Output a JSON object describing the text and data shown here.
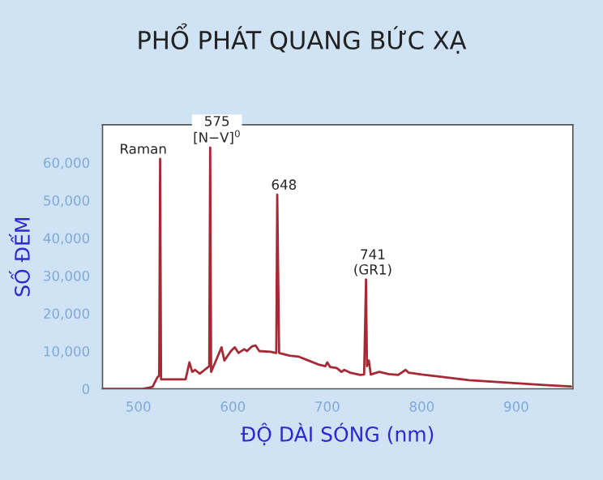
{
  "chart_data": {
    "type": "line",
    "title": "PHỔ PHÁT QUANG BỨC XẠ",
    "xlabel": "ĐỘ DÀI SÓNG (nm)",
    "ylabel": "SỐ ĐẾM",
    "x": [
      462,
      505,
      515,
      520,
      522,
      523,
      524,
      528,
      550,
      554,
      557,
      560,
      565,
      570,
      575,
      576,
      577,
      583,
      588,
      591,
      598,
      602,
      606,
      612,
      615,
      620,
      624,
      628,
      640,
      646,
      647,
      649,
      660,
      670,
      680,
      690,
      698,
      700,
      703,
      710,
      715,
      718,
      725,
      735,
      739,
      741,
      742,
      744,
      746,
      755,
      765,
      775,
      783,
      786,
      800,
      820,
      850,
      880,
      900,
      930,
      958
    ],
    "series": [
      {
        "color": "#a52a35",
        "values": [
          0,
          0,
          500,
          3000,
          3500,
          61000,
          2500,
          2500,
          2500,
          7000,
          4500,
          5000,
          4000,
          5000,
          6000,
          64000,
          4500,
          8000,
          11000,
          7500,
          10000,
          11000,
          9500,
          10500,
          10000,
          11200,
          11500,
          10000,
          9800,
          9500,
          51500,
          9500,
          8800,
          8500,
          7500,
          6500,
          6000,
          7000,
          5800,
          5500,
          4500,
          5000,
          4200,
          3700,
          3800,
          29000,
          6000,
          7500,
          3800,
          4500,
          3900,
          3700,
          5000,
          4300,
          3800,
          3200,
          2300,
          1800,
          1500,
          1000,
          600
        ]
      }
    ],
    "xlim": [
      462,
      960
    ],
    "ylim": [
      0,
      70000
    ],
    "xticks": [
      500,
      600,
      700,
      800,
      900
    ],
    "yticks": [
      0,
      {
        "value": 10000,
        "label": "10,000"
      },
      {
        "value": 20000,
        "label": "20,000"
      },
      {
        "value": 30000,
        "label": "30,000"
      },
      {
        "value": 40000,
        "label": "40,000"
      },
      {
        "value": 50000,
        "label": "50,000"
      },
      {
        "value": 60000,
        "label": "60,000"
      }
    ],
    "annotations": [
      {
        "text": "Raman",
        "x": 523,
        "y": 61000
      },
      {
        "text": "575\n[N−V]$^{0}$",
        "x": 576,
        "y": 64000
      },
      {
        "text": "648",
        "x": 647,
        "y": 51500
      },
      {
        "text": "741\n(GR1)",
        "x": 741,
        "y": 29000
      }
    ],
    "grid": false,
    "legend": false
  }
}
